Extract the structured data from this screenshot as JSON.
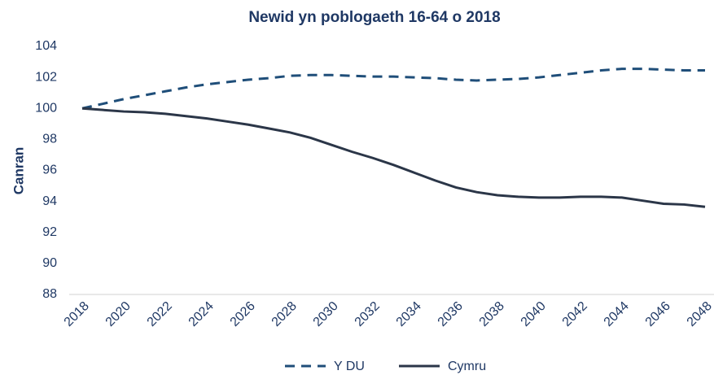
{
  "chart_data": {
    "type": "line",
    "title": "Newid yn poblogaeth 16-64 o 2018",
    "y_label": "Canran",
    "x": [
      2018,
      2019,
      2020,
      2021,
      2022,
      2023,
      2024,
      2025,
      2026,
      2027,
      2028,
      2029,
      2030,
      2031,
      2032,
      2033,
      2034,
      2035,
      2036,
      2037,
      2038,
      2039,
      2040,
      2041,
      2042,
      2043,
      2044,
      2045,
      2046,
      2047,
      2048
    ],
    "series": [
      {
        "name": "Y DU",
        "color": "#1f4e79",
        "dash": true,
        "values": [
          100,
          100.3,
          100.6,
          100.85,
          101.1,
          101.35,
          101.55,
          101.7,
          101.85,
          101.95,
          102.1,
          102.15,
          102.15,
          102.1,
          102.05,
          102.05,
          102.0,
          101.95,
          101.85,
          101.8,
          101.85,
          101.9,
          102.0,
          102.15,
          102.3,
          102.45,
          102.55,
          102.55,
          102.5,
          102.45,
          102.45
        ]
      },
      {
        "name": "Cymru",
        "color": "#2b3648",
        "dash": false,
        "values": [
          100,
          99.9,
          99.8,
          99.75,
          99.65,
          99.5,
          99.35,
          99.15,
          98.95,
          98.7,
          98.45,
          98.1,
          97.65,
          97.2,
          96.8,
          96.35,
          95.85,
          95.35,
          94.9,
          94.6,
          94.4,
          94.3,
          94.25,
          94.25,
          94.3,
          94.3,
          94.25,
          94.05,
          93.85,
          93.8,
          93.65
        ]
      }
    ],
    "xlim": [
      2018,
      2048
    ],
    "xticks": [
      2018,
      2020,
      2022,
      2024,
      2026,
      2028,
      2030,
      2032,
      2034,
      2036,
      2038,
      2040,
      2042,
      2044,
      2046,
      2048
    ],
    "ylim": [
      88,
      104
    ],
    "yticks": [
      88,
      90,
      92,
      94,
      96,
      98,
      100,
      102,
      104
    ],
    "legend": "bottom"
  }
}
